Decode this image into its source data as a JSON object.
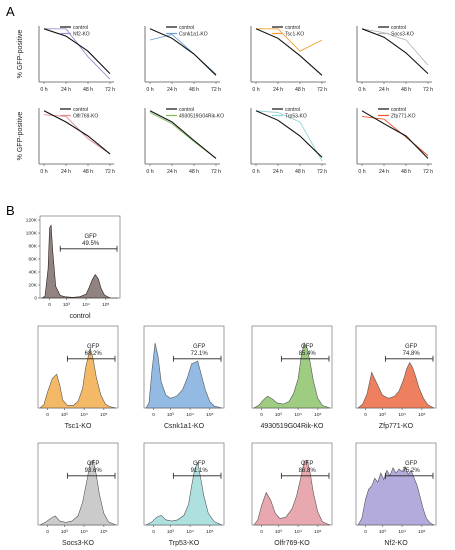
{
  "panels": {
    "a": "A",
    "b": "B"
  },
  "colors": {
    "control": "#111111",
    "Nf2-KO": "#9a8fd0",
    "Csnk1a1-KO": "#6fa3d8",
    "Tsc1-KO": "#f0a133",
    "Socs3-KO": "#b9b9b9",
    "Olfr769-KO": "#e08b94",
    "4930519G04Rik-KO": "#7dbb57",
    "Trp53-KO": "#92d6d4",
    "Zfp771-KO": "#e8552a"
  },
  "chart_data": [
    {
      "type": "line",
      "ylabel": "% GFP-positive",
      "categories": [
        "0 h",
        "24 h",
        "48 h",
        "72 h"
      ],
      "ylim": [
        0,
        100
      ],
      "series": [
        {
          "name": "control",
          "values": [
            95,
            82,
            55,
            15
          ]
        },
        {
          "name": "Nf2-KO",
          "values": [
            95,
            95,
            45,
            5
          ]
        }
      ]
    },
    {
      "type": "line",
      "categories": [
        "0 h",
        "24 h",
        "48 h",
        "72 h"
      ],
      "ylim": [
        0,
        100
      ],
      "series": [
        {
          "name": "control",
          "values": [
            95,
            78,
            50,
            12
          ]
        },
        {
          "name": "Csnk1a1-KO",
          "values": [
            75,
            85,
            50,
            14
          ]
        }
      ]
    },
    {
      "type": "line",
      "categories": [
        "0 h",
        "24 h",
        "48 h",
        "72 h"
      ],
      "ylim": [
        0,
        100
      ],
      "series": [
        {
          "name": "control",
          "values": [
            95,
            78,
            47,
            12
          ]
        },
        {
          "name": "Tsc1-KO",
          "values": [
            95,
            95,
            55,
            75
          ]
        }
      ]
    },
    {
      "type": "line",
      "categories": [
        "0 h",
        "24 h",
        "48 h",
        "72 h"
      ],
      "ylim": [
        0,
        100
      ],
      "series": [
        {
          "name": "control",
          "values": [
            95,
            80,
            52,
            15
          ]
        },
        {
          "name": "Socs3-KO",
          "values": [
            95,
            88,
            75,
            30
          ]
        }
      ]
    },
    {
      "type": "line",
      "ylabel": "% GFP-positive",
      "categories": [
        "0 h",
        "24 h",
        "48 h",
        "72 h"
      ],
      "ylim": [
        0,
        100
      ],
      "series": [
        {
          "name": "control",
          "values": [
            95,
            75,
            50,
            18
          ]
        },
        {
          "name": "Olfr769-KO",
          "values": [
            88,
            85,
            45,
            18
          ]
        }
      ]
    },
    {
      "type": "line",
      "categories": [
        "0 h",
        "24 h",
        "48 h",
        "72 h"
      ],
      "ylim": [
        0,
        100
      ],
      "series": [
        {
          "name": "control",
          "values": [
            95,
            75,
            42,
            10
          ]
        },
        {
          "name": "4930519G04Rik-KO",
          "values": [
            92,
            72,
            40,
            10
          ]
        }
      ]
    },
    {
      "type": "line",
      "categories": [
        "0 h",
        "24 h",
        "48 h",
        "72 h"
      ],
      "ylim": [
        0,
        100
      ],
      "series": [
        {
          "name": "control",
          "values": [
            95,
            78,
            50,
            12
          ]
        },
        {
          "name": "Trp53-KO",
          "values": [
            95,
            92,
            75,
            5
          ]
        }
      ]
    },
    {
      "type": "line",
      "categories": [
        "0 h",
        "24 h",
        "48 h",
        "72 h"
      ],
      "ylim": [
        0,
        100
      ],
      "series": [
        {
          "name": "control",
          "values": [
            95,
            72,
            50,
            10
          ]
        },
        {
          "name": "Zfp771-KO",
          "values": [
            85,
            80,
            48,
            15
          ]
        }
      ]
    },
    {
      "type": "area",
      "title": "control",
      "gate_label": "GFP",
      "gate_pct": "49.5%",
      "ylim": [
        0,
        120
      ],
      "yticks": [
        "0",
        "20K",
        "40K",
        "60K",
        "80K",
        "100K",
        "120K"
      ],
      "xticks": [
        "0",
        "10³",
        "10⁴",
        "10⁵"
      ],
      "x": [
        0.0,
        0.04,
        0.08,
        0.1,
        0.12,
        0.14,
        0.18,
        0.24,
        0.3,
        0.4,
        0.5,
        0.58,
        0.62,
        0.66,
        0.7,
        0.74,
        0.78,
        0.82,
        0.86,
        0.9,
        1.0
      ],
      "y": [
        0,
        3,
        45,
        108,
        112,
        75,
        18,
        4,
        2,
        1,
        2,
        6,
        16,
        28,
        36,
        30,
        14,
        5,
        2,
        0,
        0
      ]
    },
    {
      "type": "area",
      "title": "Tsc1-KO",
      "gate_label": "GFP",
      "gate_pct": "68.2%",
      "series_color": "Tsc1-KO",
      "xticks": [
        "0",
        "10³",
        "10⁴",
        "10⁵"
      ],
      "x": [
        0.0,
        0.05,
        0.1,
        0.16,
        0.22,
        0.26,
        0.3,
        0.36,
        0.44,
        0.5,
        0.56,
        0.6,
        0.66,
        0.7,
        0.74,
        0.8,
        0.86,
        0.92,
        1.0
      ],
      "y": [
        0,
        5,
        25,
        45,
        52,
        35,
        12,
        4,
        4,
        10,
        30,
        62,
        92,
        75,
        48,
        20,
        6,
        2,
        0
      ]
    },
    {
      "type": "area",
      "title": "Csnk1a1-KO",
      "gate_label": "GFP",
      "gate_pct": "72.1%",
      "series_color": "Csnk1a1-KO",
      "xticks": [
        "0",
        "10³",
        "10⁴",
        "10⁵"
      ],
      "x": [
        0.0,
        0.04,
        0.08,
        0.12,
        0.16,
        0.2,
        0.26,
        0.32,
        0.4,
        0.48,
        0.54,
        0.6,
        0.64,
        0.68,
        0.72,
        0.78,
        0.84,
        0.9,
        1.0
      ],
      "y": [
        0,
        8,
        60,
        100,
        78,
        40,
        20,
        15,
        18,
        28,
        45,
        68,
        70,
        72,
        55,
        28,
        10,
        3,
        0
      ]
    },
    {
      "type": "area",
      "title": "4930519G04Rik-KO",
      "gate_label": "GFP",
      "gate_pct": "85.4%",
      "series_color": "4930519G04Rik-KO",
      "xticks": [
        "0",
        "10³",
        "10⁴",
        "10⁵"
      ],
      "x": [
        0.0,
        0.06,
        0.12,
        0.18,
        0.24,
        0.3,
        0.38,
        0.46,
        0.52,
        0.58,
        0.62,
        0.66,
        0.7,
        0.74,
        0.78,
        0.84,
        0.9,
        1.0
      ],
      "y": [
        0,
        4,
        12,
        18,
        14,
        8,
        6,
        10,
        22,
        45,
        78,
        100,
        92,
        70,
        42,
        15,
        4,
        0
      ]
    },
    {
      "type": "area",
      "title": "Zfp771-KO",
      "gate_label": "GFP",
      "gate_pct": "74.8%",
      "series_color": "Zfp771-KO",
      "xticks": [
        "0",
        "10³",
        "10⁴",
        "10⁵"
      ],
      "x": [
        0.0,
        0.06,
        0.12,
        0.18,
        0.24,
        0.32,
        0.4,
        0.48,
        0.54,
        0.6,
        0.64,
        0.68,
        0.72,
        0.76,
        0.8,
        0.86,
        0.92,
        1.0
      ],
      "y": [
        0,
        6,
        22,
        55,
        40,
        20,
        15,
        18,
        26,
        44,
        60,
        70,
        62,
        48,
        32,
        15,
        5,
        0
      ]
    },
    {
      "type": "area",
      "title": "Socs3-KO",
      "gate_label": "GFP",
      "gate_pct": "93.6%",
      "series_color": "Socs3-KO",
      "xticks": [
        "0",
        "10³",
        "10⁴",
        "10⁵"
      ],
      "x": [
        0.0,
        0.08,
        0.14,
        0.2,
        0.26,
        0.34,
        0.42,
        0.5,
        0.56,
        0.62,
        0.66,
        0.7,
        0.74,
        0.78,
        0.84,
        0.9,
        1.0
      ],
      "y": [
        0,
        5,
        10,
        14,
        6,
        4,
        6,
        14,
        35,
        70,
        96,
        100,
        78,
        48,
        18,
        5,
        0
      ]
    },
    {
      "type": "area",
      "title": "Trp53-KO",
      "gate_label": "GFP",
      "gate_pct": "91.1%",
      "series_color": "Trp53-KO",
      "xticks": [
        "0",
        "10³",
        "10⁴",
        "10⁵"
      ],
      "x": [
        0.0,
        0.08,
        0.14,
        0.2,
        0.26,
        0.34,
        0.42,
        0.5,
        0.56,
        0.6,
        0.64,
        0.68,
        0.72,
        0.76,
        0.82,
        0.9,
        1.0
      ],
      "y": [
        0,
        5,
        12,
        15,
        8,
        6,
        8,
        15,
        32,
        60,
        85,
        96,
        72,
        45,
        18,
        5,
        0
      ]
    },
    {
      "type": "area",
      "title": "Olfr769-KO",
      "gate_label": "GFP",
      "gate_pct": "86.8%",
      "series_color": "Olfr769-KO",
      "xticks": [
        "0",
        "10³",
        "10⁴",
        "10⁵"
      ],
      "x": [
        0.0,
        0.05,
        0.1,
        0.16,
        0.22,
        0.28,
        0.34,
        0.42,
        0.5,
        0.56,
        0.62,
        0.66,
        0.7,
        0.74,
        0.78,
        0.84,
        0.9,
        1.0
      ],
      "y": [
        0,
        8,
        30,
        50,
        38,
        18,
        10,
        12,
        25,
        45,
        75,
        98,
        100,
        80,
        50,
        20,
        5,
        0
      ]
    },
    {
      "type": "area",
      "title": "Nf2-KO",
      "gate_label": "GFP",
      "gate_pct": "75.2%",
      "series_color": "Nf2-KO",
      "xticks": [
        "0",
        "10³",
        "10⁴",
        "10⁵"
      ],
      "x": [
        0.0,
        0.05,
        0.1,
        0.14,
        0.18,
        0.22,
        0.26,
        0.3,
        0.34,
        0.38,
        0.42,
        0.46,
        0.5,
        0.54,
        0.58,
        0.62,
        0.66,
        0.7,
        0.74,
        0.78,
        0.82,
        0.86,
        0.9,
        0.95,
        1.0
      ],
      "y": [
        0,
        10,
        40,
        55,
        60,
        72,
        66,
        80,
        70,
        84,
        76,
        88,
        80,
        86,
        82,
        90,
        78,
        84,
        72,
        60,
        42,
        24,
        10,
        3,
        0
      ]
    }
  ]
}
